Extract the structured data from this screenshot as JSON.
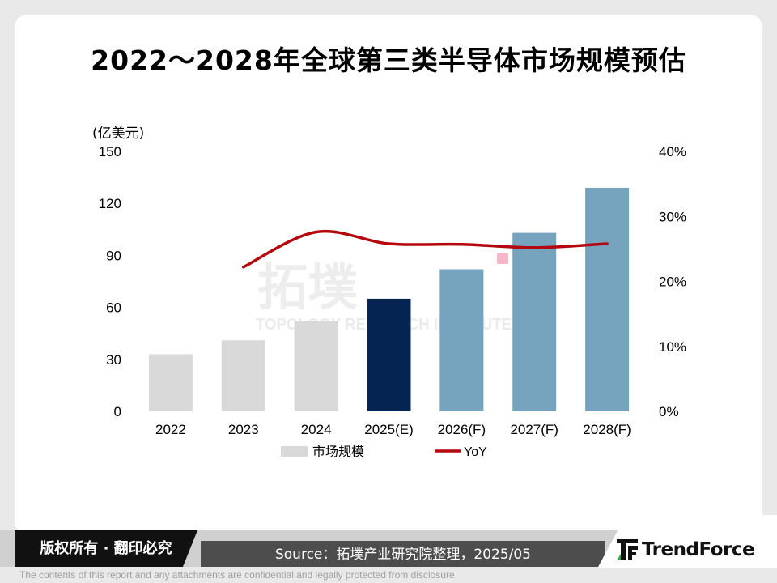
{
  "title": "2022～2028年全球第三类半导体市场规模预估",
  "watermark": {
    "logo_text": "拓墣",
    "subtitle": "TOPOLOGY RESEARCH INSTITUTE"
  },
  "footer": {
    "copyright": "版权所有 · 翻印必究",
    "source": "Source：拓墣产业研究院整理，2025/05",
    "brand": "TrendForce",
    "disclaimer": "The contents of this report and any attachments are confidential and legally protected from disclosure."
  },
  "colors": {
    "history_bar": "#d9d9d9",
    "estimate_bar": "#062452",
    "forecast_bar": "#76a3be",
    "yoy_line": "#b5080e",
    "accent_square": "#f7b7c9"
  },
  "chart_data": {
    "type": "bar",
    "categories": [
      "2022",
      "2023",
      "2024",
      "2025(E)",
      "2026(F)",
      "2027(F)",
      "2028(F)"
    ],
    "y_unit_label": "(亿美元)",
    "ylim": [
      0,
      150
    ],
    "yticks": [
      "0",
      "30",
      "60",
      "90",
      "120",
      "150"
    ],
    "y2lim": [
      0,
      40
    ],
    "y2ticks": [
      "0%",
      "10%",
      "20%",
      "30%",
      "40%"
    ],
    "series": [
      {
        "name": "市场规模",
        "type": "bar",
        "axis": "left",
        "values": [
          33,
          41,
          52,
          65,
          82,
          103,
          129
        ],
        "bar_colors": [
          "#d9d9d9",
          "#d9d9d9",
          "#d9d9d9",
          "#062452",
          "#76a3be",
          "#76a3be",
          "#76a3be"
        ]
      },
      {
        "name": "YoY",
        "type": "line",
        "axis": "right",
        "values": [
          null,
          22.2,
          27.6,
          25.8,
          25.7,
          25.2,
          25.8
        ],
        "color": "#b5080e"
      }
    ],
    "legend": [
      {
        "label": "市场规模",
        "marker": "bar"
      },
      {
        "label": "YoY",
        "marker": "line"
      }
    ],
    "legend_placement": "bottom",
    "grid": false
  }
}
